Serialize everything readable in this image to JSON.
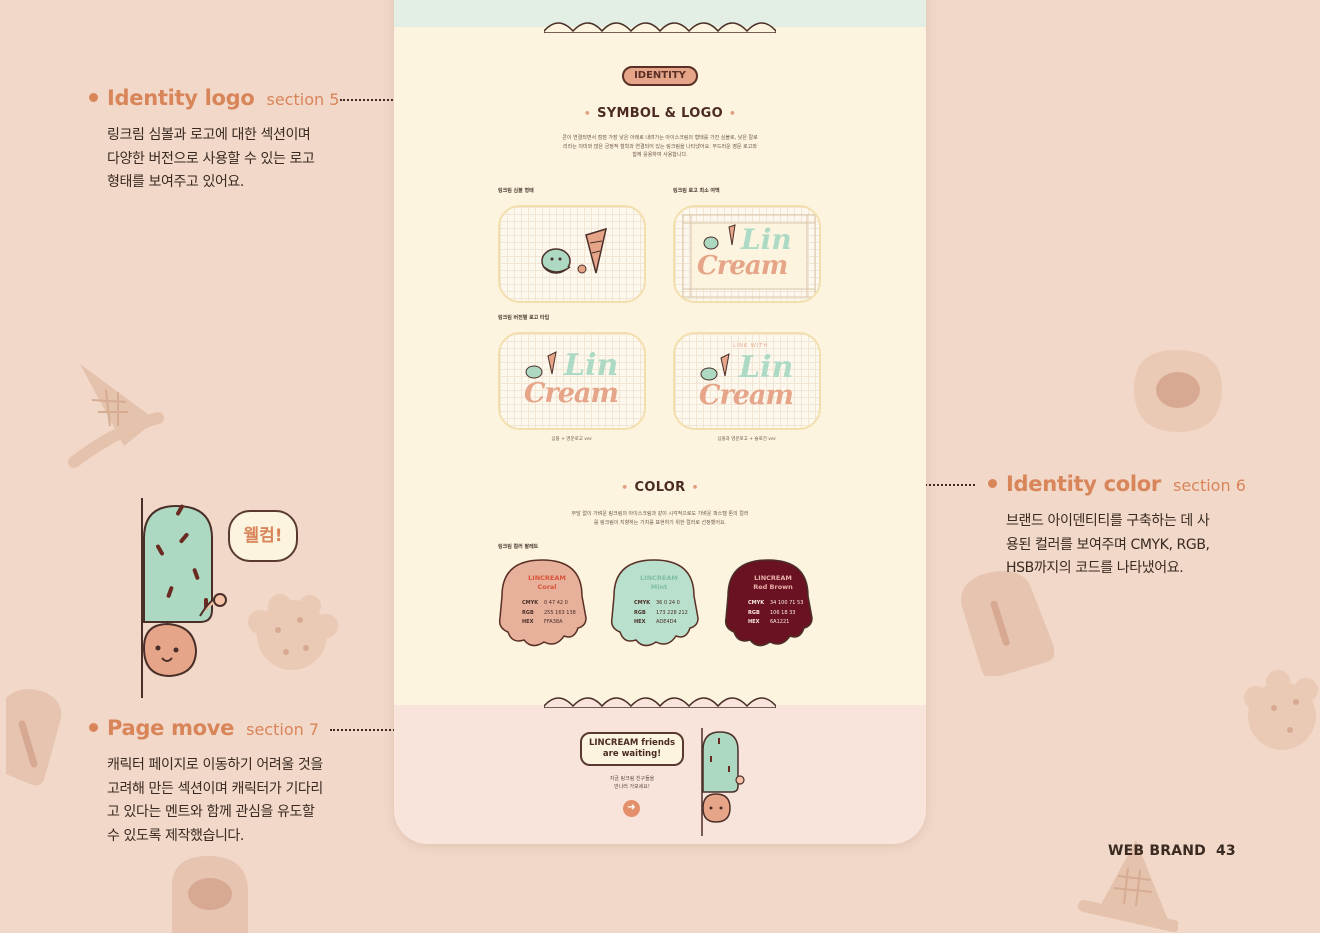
{
  "colors": {
    "background": "#f1d8c8",
    "accent": "#d9855a",
    "mockup_bg": "#fcf4de",
    "mint": "#addac4",
    "coral": "#e6a589",
    "red_brown": "#6a1221"
  },
  "annotations": [
    {
      "title": "Identity logo",
      "section": "section 5",
      "lines": [
        "링크림 심볼과 로고에 대한 섹션이며",
        "다양한 버전으로 사용할 수 있는 로고",
        "형태를 보여주고 있어요."
      ]
    },
    {
      "title": "Identity color",
      "section": "section 6",
      "lines": [
        "브랜드 아이덴티티를 구축하는 데 사",
        "용된 컬러를 보여주며 CMYK, RGB,",
        "HSB까지의 코드를 나타냈어요."
      ]
    },
    {
      "title": "Page move",
      "section": "section 7",
      "lines": [
        "캐릭터 페이지로 이동하기 어려울 것을",
        "고려해 만든 섹션이며 캐릭터가 기다리",
        "고 있다는 멘트와 함께 관심을 유도할",
        "수 있도록 제작했습니다."
      ]
    }
  ],
  "greeting": "웰컴!",
  "mockup": {
    "identity_pill": "IDENTITY",
    "symbol_title": "SYMBOL & LOGO",
    "symbol_desc": "콘이 연결되면서 점점 가장 낮은 아래로 내려가는 아이스크림의 형태를 가진 심볼로, 낮은 칼로리라는 의미와 많은 긍정적 철학과 연결되어 있는 링크림을 나타냈어요. 부드러운 영문 로고와 함께 응용하여 사용합니다.",
    "label_symbol": "링크림 심볼 형태",
    "label_min_space": "링크림 로고 최소 여백",
    "label_versions": "링크림 버전별 로고 타입",
    "logo_word_1": "Lin",
    "logo_word_2": "Cream",
    "logo_arc": "LINK WITH",
    "caption_1": "심볼 + 영문로고 ver.",
    "caption_2": "심볼과 영문로고 + 슬로건 ver.",
    "color_title": "COLOR",
    "color_desc": "부담 없이 가벼운 링크림의 아이스크림과 같이 시각적으로도 가벼운 파스텔 톤의 컬러를 링크림이 지향하는 가치를 표현하기 위한 컬러로 선정했어요.",
    "label_palette": "링크림 컬러 팔레트",
    "palette": [
      {
        "brand": "LINCREAM",
        "name": "Coral",
        "cmyk": "0 47 42 0",
        "rgb": "255 163 138",
        "hex": "FFA38A"
      },
      {
        "brand": "LINCREAM",
        "name": "Mint",
        "cmyk": "36 0 24 0",
        "rgb": "173 228 212",
        "hex": "ADE4D4"
      },
      {
        "brand": "LINCREAM",
        "name": "Red Brown",
        "cmyk": "34 100 71 53",
        "rgb": "106 18 33",
        "hex": "6A1221"
      }
    ],
    "key_cmyk": "CMYK",
    "key_rgb": "RGB",
    "key_hex": "HEX",
    "friends_bubble_1": "LINCREAM friends",
    "friends_bubble_2": "are waiting!",
    "invite_1": "지금 링크림 친구들을",
    "invite_2": "만나러 가보세요!",
    "go_arrow": "➜"
  },
  "footer": {
    "brand": "WEB BRAND",
    "page": "43"
  }
}
